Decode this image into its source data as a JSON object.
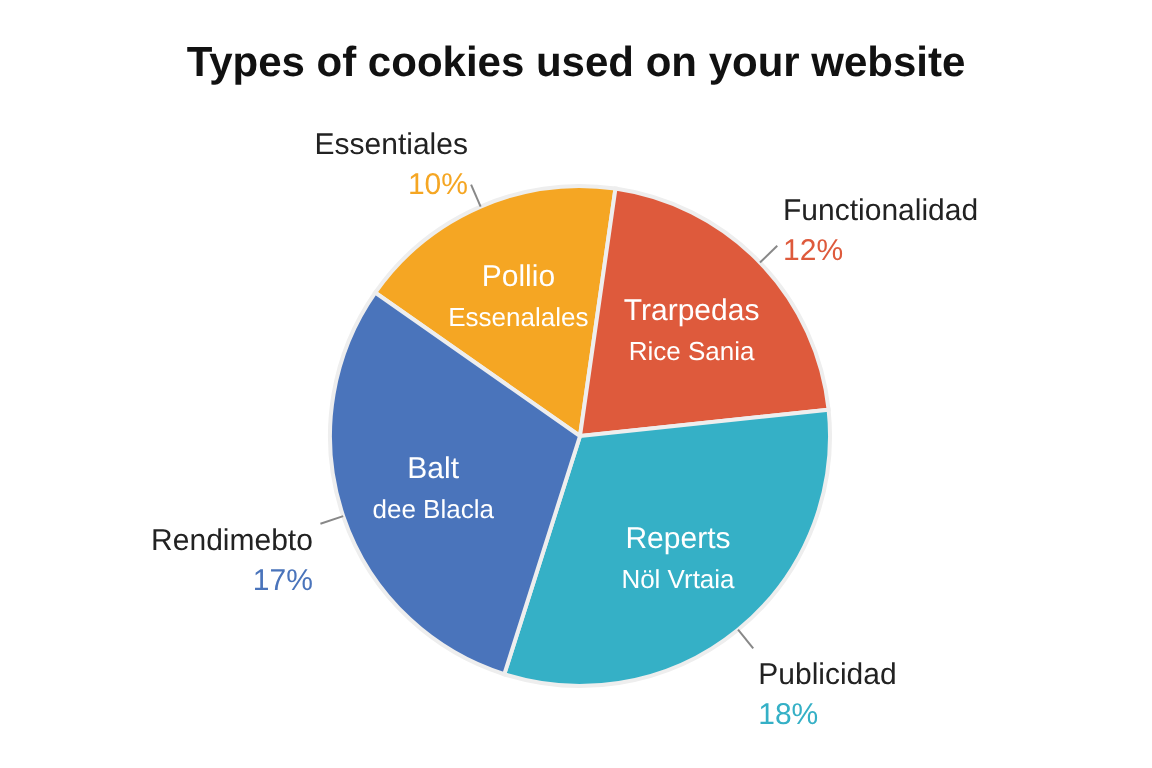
{
  "chart_data": {
    "type": "pie",
    "title": "Types of cookies used on your website",
    "categories": [
      "Essentiales",
      "Functionalidad",
      "Publicidad",
      "Rendimebto"
    ],
    "values": [
      10,
      12,
      18,
      17
    ],
    "value_labels": [
      "10%",
      "12%",
      "18%",
      "17%"
    ],
    "colors": [
      "#f5a623",
      "#de5a3c",
      "#35b0c6",
      "#4a74bb"
    ],
    "annotations": [
      "Pollio Essenalales",
      "Trarpedas Rice Sania",
      "Reperts Nöl Vrtaia",
      "Balt dee Blacla"
    ]
  }
}
